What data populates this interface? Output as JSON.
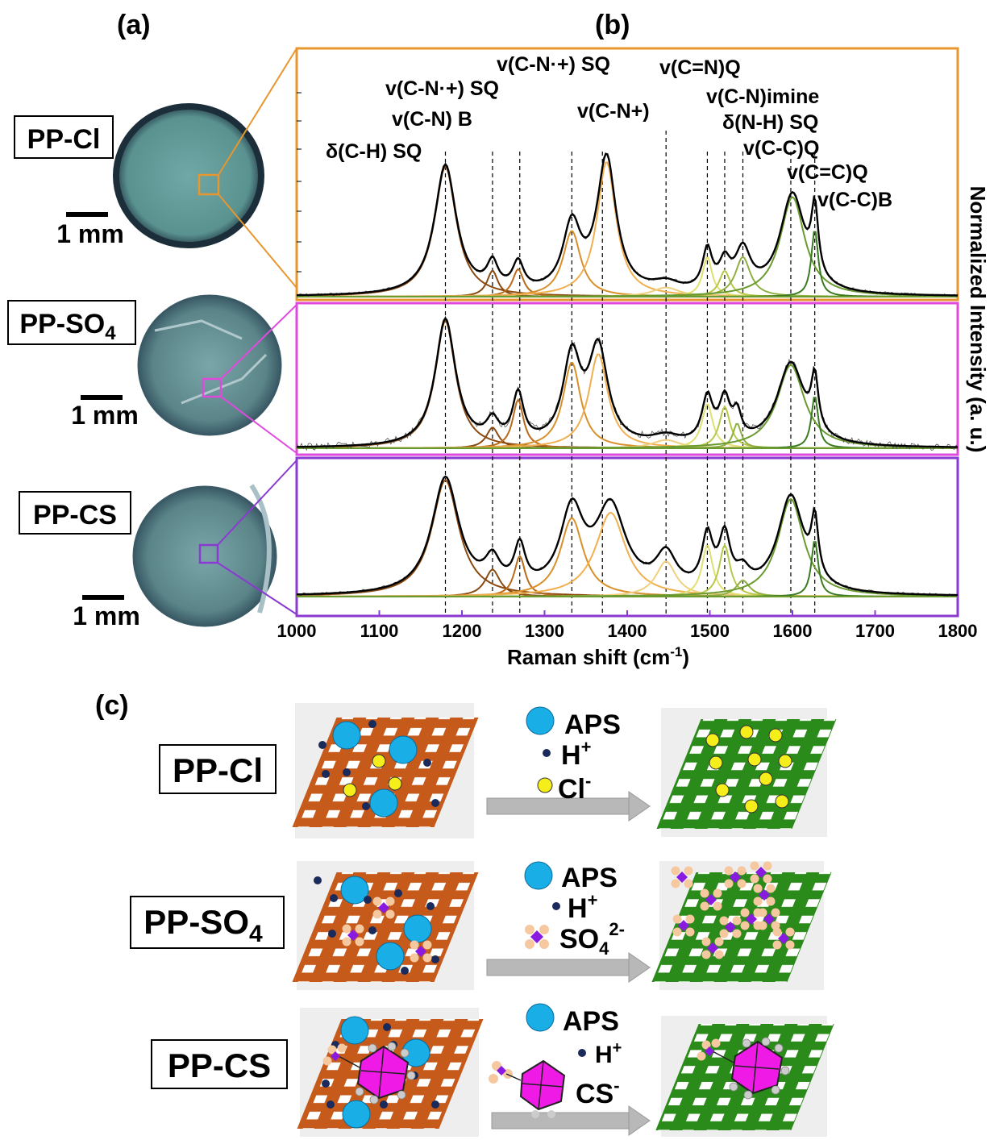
{
  "panel_labels": {
    "a": "(a)",
    "b": "(b)",
    "c": "(c)"
  },
  "samples": [
    {
      "id": "cl",
      "name_main": "PP-Cl",
      "name_sub": "",
      "frame_color": "#e8962e"
    },
    {
      "id": "so4",
      "name_main": "PP-SO",
      "name_sub": "4",
      "frame_color": "#e04adc"
    },
    {
      "id": "cs",
      "name_main": "PP-CS",
      "name_sub": "",
      "frame_color": "#8a3ad0"
    }
  ],
  "scale_bar_label": "1 mm",
  "raman": {
    "xlabel_main": "Raman shift (cm",
    "xlabel_sup": "-1",
    "xlabel_end": ")",
    "ylabel": "Normalized Intensity (a. u.)",
    "xlim": [
      1000,
      1800
    ],
    "xticks": [
      "1000",
      "1100",
      "1200",
      "1300",
      "1400",
      "1500",
      "1600",
      "1700",
      "1800"
    ],
    "peak_positions": [
      1180,
      1237,
      1270,
      1333,
      1370,
      1447,
      1497,
      1518,
      1540,
      1598,
      1627
    ],
    "band_labels": [
      {
        "text": "δ(C-H) SQ"
      },
      {
        "text": "v(C-N) B"
      },
      {
        "text": "v(C-N·+) SQ"
      },
      {
        "text": "v(C-N·+) SQ"
      },
      {
        "text": "v(C-N+)"
      },
      {
        "text": "v(C=N)Q"
      },
      {
        "text": "v(C-N)imine"
      },
      {
        "text": "δ(N-H) SQ"
      },
      {
        "text": "v(C-C)Q"
      },
      {
        "text": "v(C=C)Q"
      },
      {
        "text": "v(C-C)B"
      }
    ]
  },
  "chart_data": {
    "type": "line",
    "title": "",
    "xlabel": "Raman shift (cm-1)",
    "ylabel": "Normalized Intensity (a. u.)",
    "xlim": [
      1000,
      1800
    ],
    "series_note_colors": [
      "#8a4a10",
      "#b86a18",
      "#e0982e",
      "#f0c060",
      "#d8e070",
      "#a8c048",
      "#6a9a30",
      "#3a7a20"
    ],
    "panels": [
      {
        "sample": "PP-Cl",
        "components": [
          {
            "center": 1180,
            "height": 0.85,
            "width": 32,
            "color": "#8a4a10"
          },
          {
            "center": 1237,
            "height": 0.17,
            "width": 16,
            "color": "#8a4a10"
          },
          {
            "center": 1268,
            "height": 0.18,
            "width": 16,
            "color": "#b86a18"
          },
          {
            "center": 1333,
            "height": 0.43,
            "width": 26,
            "color": "#d8902a"
          },
          {
            "center": 1375,
            "height": 0.88,
            "width": 28,
            "color": "#f0b050"
          },
          {
            "center": 1447,
            "height": 0.06,
            "width": 40,
            "color": "#f0d080"
          },
          {
            "center": 1497,
            "height": 0.26,
            "width": 14,
            "color": "#e0e070"
          },
          {
            "center": 1518,
            "height": 0.17,
            "width": 16,
            "color": "#b8c848"
          },
          {
            "center": 1540,
            "height": 0.26,
            "width": 22,
            "color": "#90b040"
          },
          {
            "center": 1600,
            "height": 0.65,
            "width": 36,
            "color": "#6a9a30"
          },
          {
            "center": 1627,
            "height": 0.44,
            "width": 10,
            "color": "#3a7a20"
          }
        ]
      },
      {
        "sample": "PP-SO4",
        "components": [
          {
            "center": 1180,
            "height": 0.92,
            "width": 30,
            "color": "#8a4a10"
          },
          {
            "center": 1237,
            "height": 0.15,
            "width": 18,
            "color": "#8a4a10"
          },
          {
            "center": 1268,
            "height": 0.35,
            "width": 16,
            "color": "#b86a18"
          },
          {
            "center": 1333,
            "height": 0.62,
            "width": 26,
            "color": "#d8902a"
          },
          {
            "center": 1365,
            "height": 0.68,
            "width": 28,
            "color": "#f0b050"
          },
          {
            "center": 1447,
            "height": 0.06,
            "width": 40,
            "color": "#f0d080"
          },
          {
            "center": 1497,
            "height": 0.32,
            "width": 16,
            "color": "#e0e070"
          },
          {
            "center": 1518,
            "height": 0.3,
            "width": 16,
            "color": "#b8c848"
          },
          {
            "center": 1533,
            "height": 0.18,
            "width": 12,
            "color": "#90b040"
          },
          {
            "center": 1598,
            "height": 0.6,
            "width": 40,
            "color": "#6a9a30"
          },
          {
            "center": 1627,
            "height": 0.38,
            "width": 10,
            "color": "#3a7a20"
          }
        ]
      },
      {
        "sample": "PP-CS",
        "components": [
          {
            "center": 1180,
            "height": 0.86,
            "width": 40,
            "color": "#8a4a10"
          },
          {
            "center": 1237,
            "height": 0.2,
            "width": 22,
            "color": "#8a4a10"
          },
          {
            "center": 1270,
            "height": 0.3,
            "width": 16,
            "color": "#b86a18"
          },
          {
            "center": 1333,
            "height": 0.58,
            "width": 34,
            "color": "#d8902a"
          },
          {
            "center": 1380,
            "height": 0.62,
            "width": 44,
            "color": "#f0b050"
          },
          {
            "center": 1447,
            "height": 0.26,
            "width": 30,
            "color": "#f0d080"
          },
          {
            "center": 1497,
            "height": 0.38,
            "width": 16,
            "color": "#e0e070"
          },
          {
            "center": 1518,
            "height": 0.38,
            "width": 16,
            "color": "#b8c848"
          },
          {
            "center": 1540,
            "height": 0.12,
            "width": 20,
            "color": "#90b040"
          },
          {
            "center": 1598,
            "height": 0.72,
            "width": 38,
            "color": "#6a9a30"
          },
          {
            "center": 1627,
            "height": 0.42,
            "width": 10,
            "color": "#3a7a20"
          }
        ]
      }
    ]
  },
  "schematic": {
    "rows": [
      {
        "id": "cl",
        "label_main": "PP-Cl",
        "label_sub": "",
        "legend": [
          {
            "kind": "aps",
            "text": "APS",
            "sup": "",
            "sub": ""
          },
          {
            "kind": "h",
            "text": "H",
            "sup": "+",
            "sub": ""
          },
          {
            "kind": "cl",
            "text": "Cl",
            "sup": "-",
            "sub": ""
          }
        ]
      },
      {
        "id": "so4",
        "label_main": "PP-SO",
        "label_sub": "4",
        "legend": [
          {
            "kind": "aps",
            "text": "APS",
            "sup": "",
            "sub": ""
          },
          {
            "kind": "h",
            "text": "H",
            "sup": "+",
            "sub": ""
          },
          {
            "kind": "so4",
            "text": "SO",
            "sup": "2-",
            "sub": "4"
          }
        ]
      },
      {
        "id": "cs",
        "label_main": "PP-CS",
        "label_sub": "",
        "legend": [
          {
            "kind": "aps",
            "text": "APS",
            "sup": "",
            "sub": ""
          },
          {
            "kind": "h",
            "text": "H",
            "sup": "+",
            "sub": ""
          },
          {
            "kind": "cs",
            "text": "CS",
            "sup": "-",
            "sub": ""
          }
        ]
      }
    ],
    "colors": {
      "aps": "#1aaee6",
      "h": "#1a2a5a",
      "cl": "#f6ee1a",
      "so4_center": "#8a1ae0",
      "so4_oxygen": "#f6c8a0",
      "cs": "#f01ae6",
      "pani_base": "#c65a1a",
      "pani_salt": "#2a8a1a",
      "arrow": "#b8b8b8"
    }
  }
}
